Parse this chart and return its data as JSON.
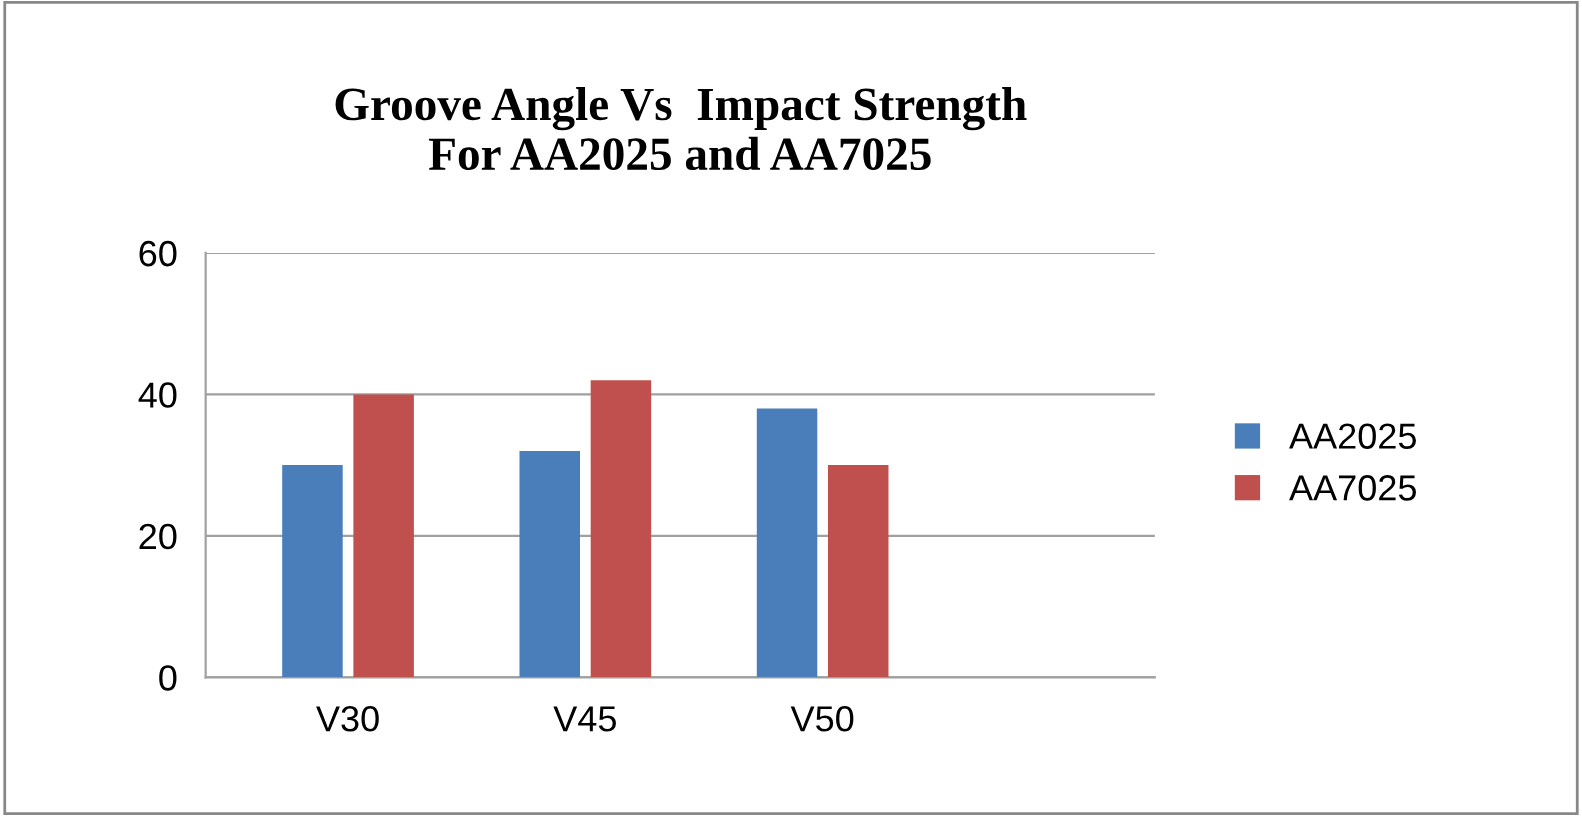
{
  "chart_data": {
    "type": "bar",
    "title": "Groove Angle Vs  Impact Strength\nFor AA2025 and AA7025",
    "categories": [
      "V30",
      "V45",
      "V50"
    ],
    "series": [
      {
        "name": "AA2025",
        "color": "#4a7ebb",
        "values": [
          30,
          32,
          38
        ]
      },
      {
        "name": "AA7025",
        "color": "#c0504d",
        "values": [
          40,
          42,
          30
        ]
      }
    ],
    "ylim": [
      0,
      60
    ],
    "yticks": [
      0,
      20,
      40,
      60
    ],
    "grid": "y",
    "legend": "right"
  }
}
